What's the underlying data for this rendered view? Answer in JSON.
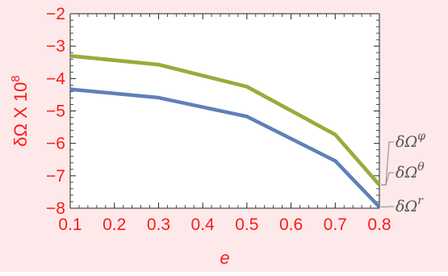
{
  "chart_data": {
    "type": "line",
    "x": [
      0.1,
      0.3,
      0.5,
      0.7,
      0.8
    ],
    "x_tick_labels": [
      "0.1",
      "0.2",
      "0.3",
      "0.4",
      "0.5",
      "0.6",
      "0.7",
      "0.8"
    ],
    "y_tick_labels": [
      "−2",
      "−3",
      "−4",
      "−5",
      "−6",
      "−7",
      "−8"
    ],
    "xlabel": "e",
    "ylabel": "δΩ X 10",
    "ylabel_exponent": "8",
    "xlim": [
      0.1,
      0.8
    ],
    "ylim": [
      -8,
      -2
    ],
    "grid": false,
    "legend_placement": "right, at series ends",
    "series": [
      {
        "name": "δΩ^φ",
        "base": "δΩ",
        "sup": "φ",
        "color": "#97ac3a",
        "values": [
          -3.3,
          -3.57,
          -4.25,
          -5.73,
          -7.28
        ]
      },
      {
        "name": "δΩ^θ",
        "base": "δΩ",
        "sup": "θ",
        "color": "#97ac3a",
        "values": [
          -3.3,
          -3.57,
          -4.25,
          -5.73,
          -7.28
        ]
      },
      {
        "name": "δΩ^r",
        "base": "δΩ",
        "sup": "r",
        "color": "#5e80b9",
        "values": [
          -4.33,
          -4.59,
          -5.17,
          -6.54,
          -7.96
        ]
      }
    ],
    "colors": {
      "background": "#fde9e9",
      "plot_area": "#ffffff",
      "axis_text": "#ff1a1a",
      "frame": "#222222"
    }
  }
}
